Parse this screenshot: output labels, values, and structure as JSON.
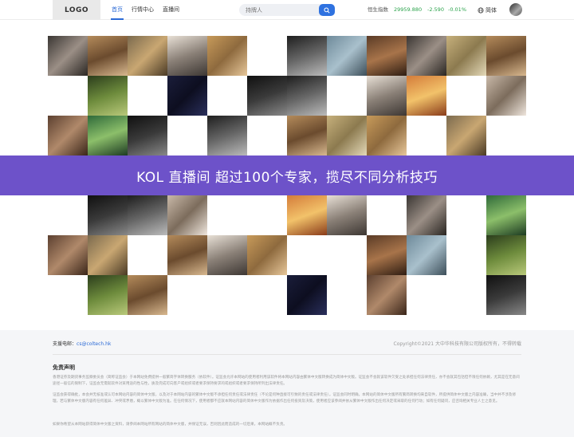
{
  "header": {
    "logo": "LOGO",
    "nav": [
      {
        "label": "首页",
        "active": true
      },
      {
        "label": "行情中心",
        "active": false
      },
      {
        "label": "直播间",
        "active": false
      }
    ],
    "search_placeholder": "持牌人",
    "index_name": "恒生指数",
    "index_value": "29959.880",
    "index_change": "-2.590",
    "index_pct": "-0.01%",
    "language": "简体"
  },
  "banner": {
    "text": "KOL 直播间  超过100个专家，揽尽不同分析技巧"
  },
  "colors": {
    "accent": "#2f72e0",
    "banner": "#6d52c9",
    "index_change": "#2aa34b"
  },
  "footer": {
    "support_label": "支援电邮：",
    "support_email": "cs@coltech.hk",
    "copyright": "Copyright©2021 大中华科技有限公司版权所有，不得转载",
    "disclaimer_title": "免责声明",
    "disclaimer_p1": "香港证券及期货事务监察委员会（简称证监会）于本网站免费提供一般繁简字体转换服务（依软件）。证监会允许本网站的使用者利用该软件将本网站内容由繁体中文版转换成为简体中文版。证监会不会就该软件欠受之处承担任何法律责任，亦不会就其包括但不限任何依赖，尤其是在无意间途径一般信的限制下，证监会无需就软件对某用途的性与性，质及完成可向客户或组织或者要求保持要求的或组织或者要求保持所列出法律责任。",
    "disclaimer_p2": "证监会获得确批，本会并无核准或认可本网站内容的简体中文版，以及对于本网站内容的繁体中文版不承担任何责任或法律责任（不论是何种直接可引致的责任或法律责任）。证监会同时明确，本网站的简体中文版所有繁简转换均来自软件，所提供简体中文版之内容准确，当中并不涉及修理，若与繁体中文版内容有任何差异、冲突或矛盾，概以繁体中文版为准。在任何情况下，使用者都不应就本网站内容的简体中文版作为依据作出任何投资及决策，使用者应该参阅并依从繁体中文版作出任何决定或采取的任何行动；如有任何疑问，应咨询相关专业人士之意见。",
    "disclaimer_p3": "如果你希望从本网站获得简体中文版之资料，请参阅本网站所有网站的简体中文版，并保证无误，否则因此而造成的一切后果，本网站概不负责。"
  }
}
